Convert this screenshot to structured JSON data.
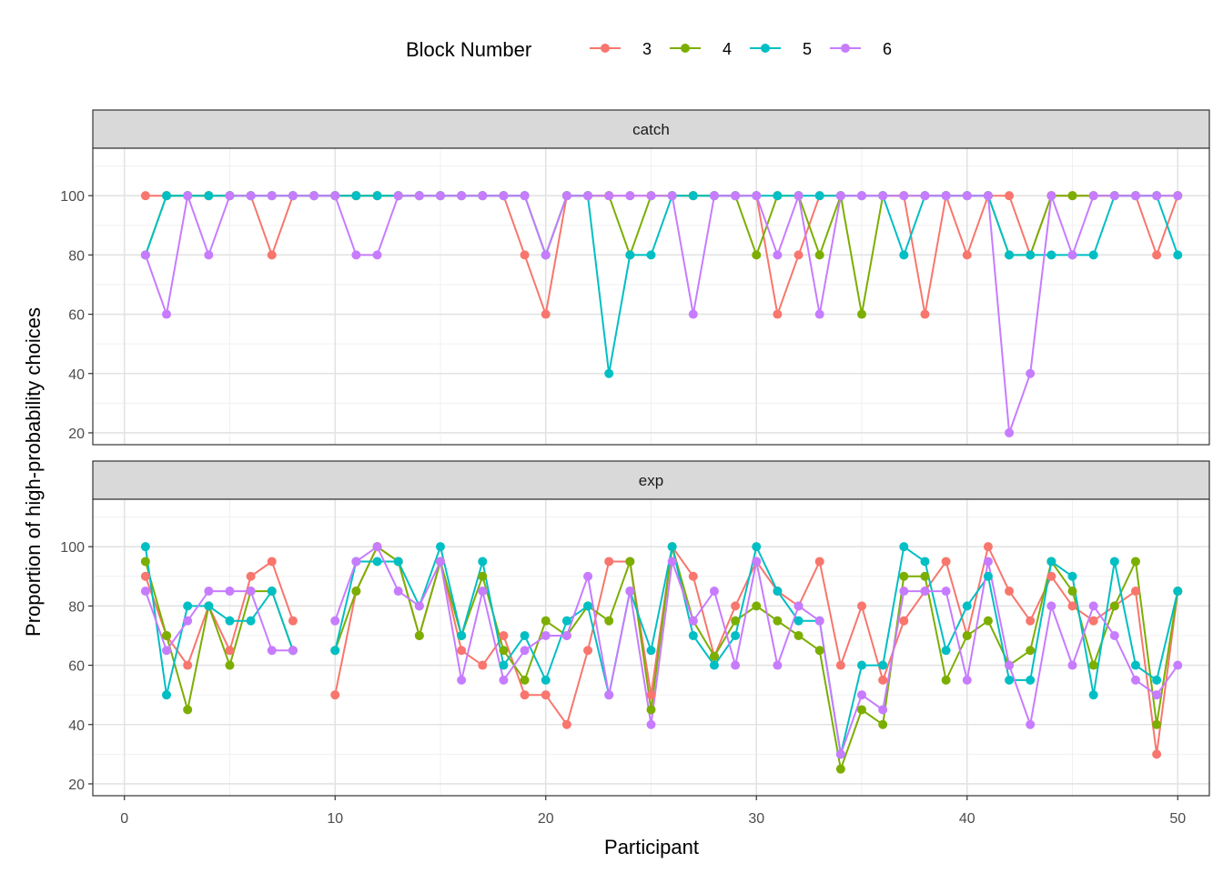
{
  "chart_data": {
    "type": "line",
    "xlabel": "Participant",
    "ylabel": "Proportion of high-probability choices",
    "legend_title": "Block Number",
    "legend_position": "top",
    "grid": true,
    "xlim": [
      -1.5,
      51.5
    ],
    "ylim": [
      16,
      116
    ],
    "x_ticks": [
      0,
      10,
      20,
      30,
      40,
      50
    ],
    "y_ticks": [
      20,
      40,
      60,
      80,
      100
    ],
    "x": [
      1,
      2,
      3,
      4,
      5,
      6,
      7,
      8,
      9,
      10,
      11,
      12,
      13,
      14,
      15,
      16,
      17,
      18,
      19,
      20,
      21,
      22,
      23,
      24,
      25,
      26,
      27,
      28,
      29,
      30,
      31,
      32,
      33,
      34,
      35,
      36,
      37,
      38,
      39,
      40,
      41,
      42,
      43,
      44,
      45,
      46,
      47,
      48,
      49,
      50
    ],
    "series_colors": {
      "3": "#F8766D",
      "4": "#7CAE00",
      "5": "#00BFC4",
      "6": "#C77CFF"
    },
    "panels": [
      {
        "name": "catch",
        "series": [
          {
            "name": "3",
            "color": "#F8766D",
            "values": [
              100,
              100,
              100,
              100,
              100,
              100,
              80,
              100,
              100,
              100,
              100,
              100,
              100,
              100,
              100,
              100,
              100,
              100,
              80,
              60,
              100,
              100,
              100,
              100,
              100,
              100,
              100,
              100,
              100,
              100,
              60,
              80,
              100,
              100,
              100,
              100,
              100,
              60,
              100,
              80,
              100,
              100,
              80,
              100,
              100,
              100,
              100,
              100,
              80,
              100
            ]
          },
          {
            "name": "4",
            "color": "#7CAE00",
            "values": [
              80,
              100,
              100,
              100,
              100,
              100,
              100,
              100,
              100,
              100,
              100,
              100,
              100,
              100,
              100,
              100,
              100,
              100,
              100,
              80,
              100,
              100,
              100,
              80,
              100,
              100,
              100,
              100,
              100,
              80,
              100,
              100,
              80,
              100,
              60,
              100,
              100,
              100,
              100,
              100,
              100,
              80,
              80,
              100,
              100,
              100,
              100,
              100,
              100,
              100
            ]
          },
          {
            "name": "5",
            "color": "#00BFC4",
            "values": [
              80,
              100,
              100,
              100,
              100,
              100,
              100,
              100,
              100,
              100,
              100,
              100,
              100,
              100,
              100,
              100,
              100,
              100,
              100,
              80,
              100,
              100,
              40,
              80,
              80,
              100,
              100,
              100,
              100,
              100,
              100,
              100,
              100,
              100,
              100,
              100,
              80,
              100,
              100,
              100,
              100,
              80,
              80,
              80,
              80,
              80,
              100,
              100,
              100,
              80
            ]
          },
          {
            "name": "6",
            "color": "#C77CFF",
            "values": [
              80,
              60,
              100,
              80,
              100,
              100,
              100,
              100,
              100,
              100,
              80,
              80,
              100,
              100,
              100,
              100,
              100,
              100,
              100,
              80,
              100,
              100,
              100,
              100,
              100,
              100,
              60,
              100,
              100,
              100,
              80,
              100,
              60,
              100,
              100,
              100,
              100,
              100,
              100,
              100,
              100,
              20,
              40,
              100,
              80,
              100,
              100,
              100,
              100,
              100
            ]
          }
        ]
      },
      {
        "name": "exp",
        "series": [
          {
            "name": "3",
            "color": "#F8766D",
            "values": [
              90,
              70,
              60,
              80,
              65,
              90,
              95,
              75,
              null,
              50,
              85,
              100,
              95,
              70,
              95,
              65,
              60,
              70,
              50,
              50,
              40,
              65,
              95,
              95,
              50,
              100,
              90,
              63,
              80,
              95,
              85,
              80,
              95,
              60,
              80,
              55,
              75,
              85,
              95,
              70,
              100,
              85,
              75,
              90,
              80,
              75,
              80,
              85,
              30,
              85
            ]
          },
          {
            "name": "4",
            "color": "#7CAE00",
            "values": [
              95,
              70,
              45,
              80,
              60,
              85,
              85,
              65,
              null,
              65,
              85,
              100,
              95,
              70,
              95,
              70,
              90,
              65,
              55,
              75,
              70,
              80,
              75,
              95,
              45,
              100,
              75,
              63,
              75,
              80,
              75,
              70,
              65,
              25,
              45,
              40,
              90,
              90,
              55,
              70,
              75,
              60,
              65,
              95,
              85,
              60,
              80,
              95,
              40,
              85
            ]
          },
          {
            "name": "5",
            "color": "#00BFC4",
            "values": [
              100,
              50,
              80,
              80,
              75,
              75,
              85,
              65,
              null,
              65,
              95,
              95,
              95,
              80,
              100,
              70,
              95,
              60,
              70,
              55,
              75,
              80,
              50,
              85,
              65,
              100,
              70,
              60,
              70,
              100,
              85,
              75,
              75,
              30,
              60,
              60,
              100,
              95,
              65,
              80,
              90,
              55,
              55,
              95,
              90,
              50,
              95,
              60,
              55,
              85
            ]
          },
          {
            "name": "6",
            "color": "#C77CFF",
            "values": [
              85,
              65,
              75,
              85,
              85,
              85,
              65,
              65,
              null,
              75,
              95,
              100,
              85,
              80,
              95,
              55,
              85,
              55,
              65,
              70,
              70,
              90,
              50,
              85,
              40,
              95,
              75,
              85,
              60,
              95,
              60,
              80,
              75,
              30,
              50,
              45,
              85,
              85,
              85,
              55,
              95,
              60,
              40,
              80,
              60,
              80,
              70,
              55,
              50,
              60
            ]
          }
        ]
      }
    ]
  }
}
